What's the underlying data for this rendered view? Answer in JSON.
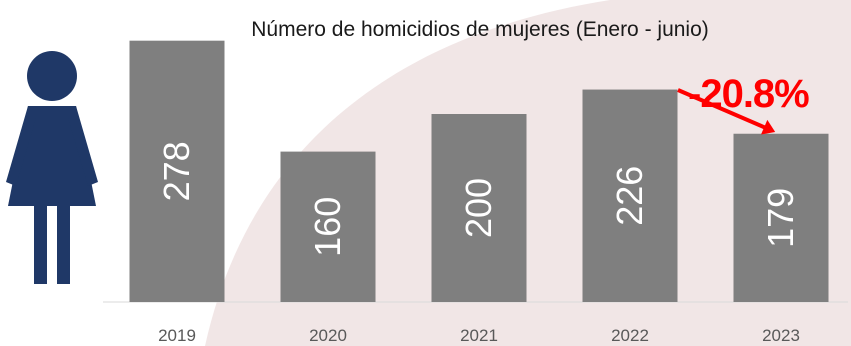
{
  "chart_data": {
    "type": "bar",
    "title": "Número de homicidios de mujeres (Enero - junio)",
    "categories": [
      "2019",
      "2020",
      "2021",
      "2022",
      "2023"
    ],
    "values": [
      278,
      160,
      200,
      226,
      179
    ],
    "ylim": [
      0,
      300
    ],
    "grid": false,
    "legend": "none",
    "bar_color": "#7f7f7f",
    "data_label_color": "#ffffff",
    "annotation": {
      "text": "-20.8%",
      "color": "#ff0000",
      "from_category": "2022",
      "to_category": "2023"
    }
  },
  "icon": {
    "name": "woman-icon",
    "color": "#1f3867"
  },
  "background_color": "#efe3e3"
}
